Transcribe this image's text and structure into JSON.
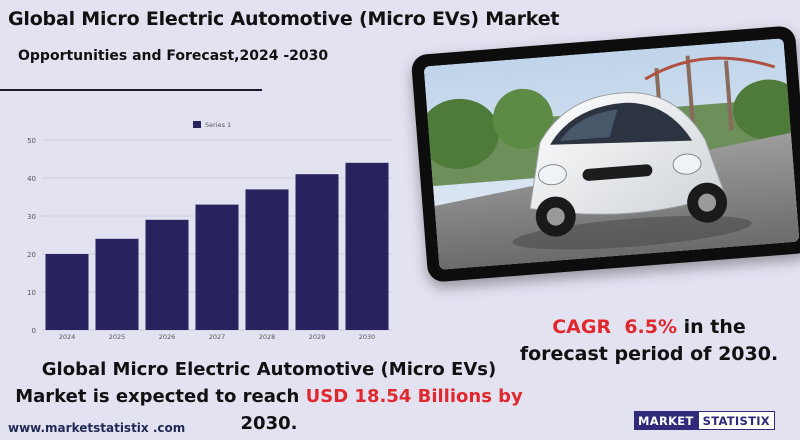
{
  "header": {
    "title": "Global Micro Electric Automotive (Micro EVs) Market",
    "subtitle": "Opportunities and Forecast,2024 -2030"
  },
  "chart_data": {
    "type": "bar",
    "categories": [
      "2024",
      "2025",
      "2026",
      "2027",
      "2028",
      "2029",
      "2030"
    ],
    "series": [
      {
        "name": "Series 1",
        "values": [
          20,
          24,
          29,
          33,
          37,
          41,
          44
        ]
      }
    ],
    "title": "",
    "xlabel": "",
    "ylabel": "",
    "ylim": [
      0,
      50
    ],
    "yticks": [
      0,
      10,
      20,
      30,
      40,
      50
    ],
    "grid": true,
    "legend": "top-center",
    "bar_color": "#27235f"
  },
  "cagr": {
    "prefix": "CAGR",
    "value": "6.5%",
    "suffix": "in the forecast period of 2030."
  },
  "summary": {
    "text_before": "Global Micro Electric Automotive (Micro EVs) Market is expected to reach",
    "highlight": "USD 18.54 Billions by",
    "text_after": "2030."
  },
  "footer": {
    "website": "www.marketstatistix .com",
    "logo_left": "MARKET",
    "logo_right": "STATISTIX"
  },
  "colors": {
    "background": "#e3e2f1",
    "accent_red": "#e0292e",
    "brand_navy": "#2f2a7a"
  }
}
